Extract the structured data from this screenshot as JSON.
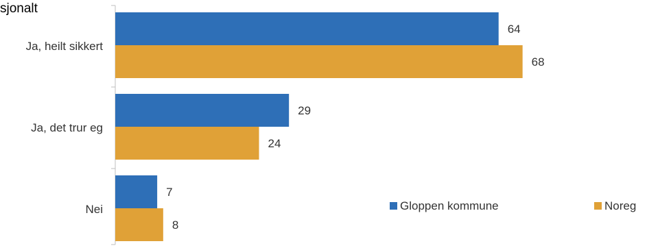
{
  "chart_data": {
    "type": "bar",
    "orientation": "horizontal",
    "title": "sjonalt",
    "categories": [
      "Ja, heilt sikkert",
      "Ja, det trur eg",
      "Nei"
    ],
    "series": [
      {
        "name": "Gloppen kommune",
        "color": "#2E6FB7",
        "values": [
          64,
          29,
          7
        ]
      },
      {
        "name": "Noreg",
        "color": "#E0A137",
        "values": [
          68,
          24,
          8
        ]
      }
    ],
    "xlim": [
      0,
      100
    ],
    "grid": false,
    "legend_position": "bottom-right"
  }
}
